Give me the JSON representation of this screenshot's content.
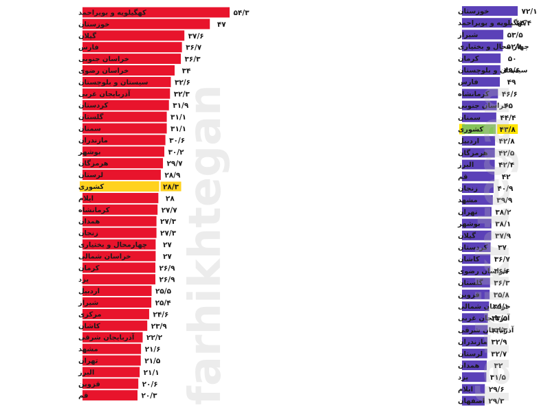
{
  "watermark": "farhikhtegan",
  "colors": {
    "left_bar": "#e8142c",
    "right_bar": "#5b41b8",
    "national_left": "#ffd21f",
    "national_right": "#86c45a",
    "national_label_bg": "#ffe500"
  },
  "chart_data": [
    {
      "type": "bar",
      "orientation": "horizontal",
      "highlight": "کشوری",
      "categories": [
        "کهگیلویه و بویراحمد",
        "خوزستان",
        "گیلان",
        "فارس",
        "خراسان جنوبی",
        "خراسان رضوی",
        "سیستان و بلوچستان",
        "آذربایجان غربی",
        "کردستان",
        "گلستان",
        "سمنان",
        "مازندران",
        "بوشهر",
        "هرمزگان",
        "لرستان",
        "کشوری",
        "ایلام",
        "کرمانشاه",
        "همدان",
        "زنجان",
        "چهارمحال و بختیاری",
        "خراسان شمالی",
        "کرمان",
        "یزد",
        "اردبیل",
        "شیراز",
        "مرکزی",
        "کاشان",
        "آذربایجان شرقی",
        "مشهد",
        "تهران",
        "البرز",
        "قزوین",
        "قم"
      ],
      "labels": [
        "۵۴/۳",
        "۴۷",
        "۳۷/۶",
        "۳۶/۷",
        "۳۶/۳",
        "۳۴",
        "۳۲/۶",
        "۳۲/۳",
        "۳۱/۹",
        "۳۱/۱",
        "۳۱/۱",
        "۳۰/۶",
        "۳۰/۲",
        "۲۹/۷",
        "۲۸/۹",
        "۲۸/۳",
        "۲۸",
        "۲۷/۷",
        "۲۷/۳",
        "۲۷/۳",
        "۲۷",
        "۲۷",
        "۲۶/۹",
        "۲۶/۹",
        "۲۵/۵",
        "۲۵/۴",
        "۲۴/۶",
        "۲۳/۹",
        "۲۲/۲",
        "۲۱/۶",
        "۲۱/۵",
        "۲۱/۱",
        "۲۰/۶",
        "۲۰/۳"
      ],
      "values": [
        54.3,
        47,
        37.6,
        36.7,
        36.3,
        34,
        32.6,
        32.3,
        31.9,
        31.1,
        31.1,
        30.6,
        30.2,
        29.7,
        28.9,
        28.3,
        28,
        27.7,
        27.3,
        27.3,
        27,
        27,
        26.9,
        26.9,
        25.5,
        25.4,
        24.6,
        23.9,
        22.2,
        21.6,
        21.5,
        21.1,
        20.6,
        20.3
      ]
    },
    {
      "type": "bar",
      "orientation": "horizontal",
      "highlight": "کشوری",
      "categories": [
        "خوزستان",
        "کهگیلویه و بویراحمد",
        "شیراز",
        "چهار محال و بختیاری",
        "کرمان",
        "سیستان و بلوچستان",
        "فارس",
        "کرمانشاه",
        "خراسان جنوبی",
        "سمنان",
        "کشوری",
        "اردبیل",
        "هرمزگان",
        "البرز",
        "قم",
        "زنجان",
        "مشهد",
        "تهران",
        "بوشهر",
        "گیلان",
        "کردستان",
        "کاشان",
        "خراسان رضوی",
        "گلستان",
        "قزوین",
        "خراسان شمالی",
        "آذربایجان غربی",
        "آذربایجان شرقی",
        "مازندران",
        "لرستان",
        "همدان",
        "یزد",
        "ایلام",
        "اصفهان"
      ],
      "labels": [
        "۷۲/۱",
        "۶۴/۴",
        "۵۳/۵",
        "۵۲/۸",
        "۵۰",
        "۴۹/۶",
        "۴۹",
        "۴۶/۶",
        "۴۵",
        "۴۴/۴",
        "۴۳/۸",
        "۴۲/۸",
        "۴۲/۵",
        "۴۲/۴",
        "۴۲",
        "۴۰/۹",
        "۳۹/۹",
        "۳۸/۲",
        "۳۸/۱",
        "۳۷/۹",
        "۳۷",
        "۳۶/۷",
        "۳۶/۶",
        "۳۶/۳",
        "۳۵/۸",
        "۳۵/۱",
        "۳۳/۵",
        "۳۳/۳",
        "۳۲/۹",
        "۳۲/۷",
        "۳۲",
        "۳۱/۵",
        "۲۹/۶",
        "۲۹/۳"
      ],
      "values": [
        72.1,
        64.4,
        53.5,
        52.8,
        50,
        49.6,
        49,
        46.6,
        45,
        44.4,
        43.8,
        42.8,
        42.5,
        42.4,
        42,
        40.9,
        39.9,
        38.2,
        38.1,
        37.9,
        37,
        36.7,
        36.6,
        36.3,
        35.8,
        35.1,
        33.5,
        33.3,
        32.9,
        32.7,
        32,
        31.5,
        29.6,
        29.3
      ]
    }
  ]
}
